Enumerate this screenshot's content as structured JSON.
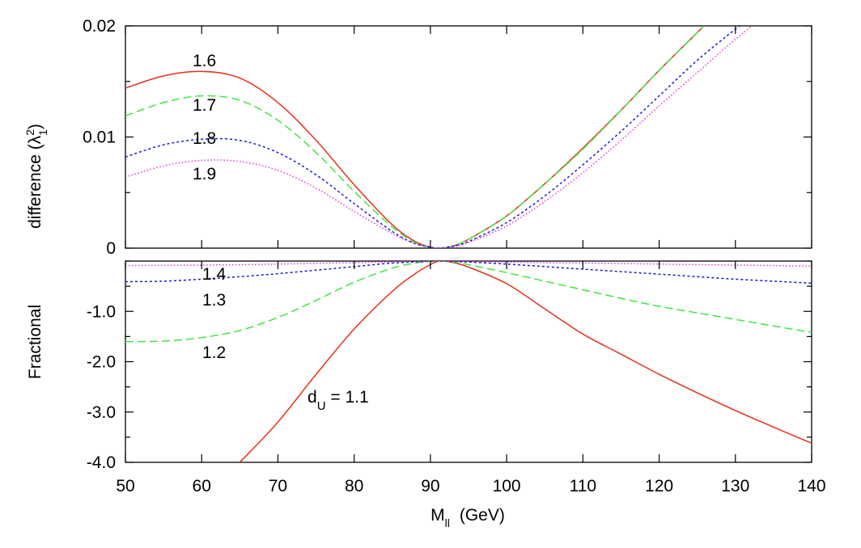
{
  "chart_data": [
    {
      "type": "line",
      "title": "",
      "xlabel_main": "M",
      "xlabel_sub": "ll",
      "xlabel_unit": "(GeV)",
      "ylabel_main": "difference (λ",
      "ylabel_sup": "2",
      "ylabel_sub": "1",
      "ylabel_close": ")",
      "xlim": [
        50,
        140
      ],
      "ylim": [
        0,
        0.02
      ],
      "xticks": [
        50,
        60,
        70,
        80,
        90,
        100,
        110,
        120,
        130,
        140
      ],
      "xtick_labels": [
        "50",
        "60",
        "70",
        "80",
        "90",
        "100",
        "110",
        "120",
        "130",
        "140"
      ],
      "yticks": [
        0,
        0.01,
        0.02
      ],
      "ytick_labels": [
        "0",
        "0.01",
        "0.02"
      ],
      "series": [
        {
          "label": "1.6",
          "color": "#e8301a",
          "dash": "none",
          "x": [
            50,
            55,
            60,
            65,
            70,
            75,
            80,
            85,
            88,
            90,
            91.2,
            93,
            95,
            100,
            105,
            110,
            115,
            120,
            125,
            127
          ],
          "y": [
            0.0144,
            0.0155,
            0.0159,
            0.0153,
            0.0131,
            0.0097,
            0.0057,
            0.0021,
            0.0006,
            0.0001,
            0.0,
            0.0002,
            0.0008,
            0.0029,
            0.0058,
            0.009,
            0.0124,
            0.016,
            0.0194,
            0.0208
          ]
        },
        {
          "label": "1.7",
          "color": "#3fe83f",
          "dash": "10,5",
          "x": [
            50,
            55,
            60,
            65,
            70,
            75,
            80,
            85,
            88,
            90,
            91.2,
            93,
            95,
            100,
            105,
            110,
            115,
            120,
            125,
            127
          ],
          "y": [
            0.0119,
            0.0131,
            0.0137,
            0.0133,
            0.0115,
            0.0086,
            0.0051,
            0.0019,
            0.0005,
            0.0001,
            0.0,
            0.0002,
            0.0008,
            0.0029,
            0.0058,
            0.0089,
            0.0124,
            0.016,
            0.0194,
            0.0208
          ]
        },
        {
          "label": "1.8",
          "color": "#1a1ad9",
          "dash": "3,3",
          "x": [
            50,
            55,
            60,
            65,
            70,
            75,
            80,
            85,
            88,
            90,
            91.2,
            93,
            95,
            100,
            105,
            110,
            115,
            120,
            125,
            130,
            133
          ],
          "y": [
            0.0082,
            0.0093,
            0.0098,
            0.0097,
            0.0086,
            0.0066,
            0.004,
            0.0015,
            0.0004,
            0.0001,
            0.0,
            0.0002,
            0.0006,
            0.0023,
            0.0047,
            0.0075,
            0.0105,
            0.0137,
            0.0169,
            0.0197,
            0.0212
          ]
        },
        {
          "label": "1.9",
          "color": "#e830e8",
          "dash": "1.5,2.5",
          "x": [
            50,
            55,
            60,
            65,
            70,
            75,
            80,
            85,
            88,
            90,
            91.2,
            93,
            95,
            100,
            105,
            110,
            115,
            120,
            125,
            130,
            135
          ],
          "y": [
            0.0064,
            0.0074,
            0.0079,
            0.0078,
            0.007,
            0.0054,
            0.0033,
            0.0013,
            0.0004,
            0.0001,
            0.0,
            0.0001,
            0.0005,
            0.002,
            0.0042,
            0.0068,
            0.0097,
            0.0128,
            0.0158,
            0.0188,
            0.0215
          ]
        }
      ],
      "annotations": [
        "1.6",
        "1.7",
        "1.8",
        "1.9"
      ]
    },
    {
      "type": "line",
      "title": "",
      "ylabel": "Fractional",
      "xlim": [
        50,
        140
      ],
      "ylim": [
        -4.0,
        0
      ],
      "yticks": [
        -1.0,
        -2.0,
        -3.0,
        -4.0
      ],
      "ytick_labels": [
        "-1.0",
        "-2.0",
        "-3.0",
        "-4.0"
      ],
      "series": [
        {
          "label": "1.1",
          "color": "#e8301a",
          "dash": "none",
          "x": [
            65,
            70,
            75,
            80,
            85,
            88,
            90,
            91.2,
            93,
            95,
            100,
            105,
            110,
            115,
            120,
            125,
            130,
            135,
            140
          ],
          "y": [
            -4.0,
            -3.2,
            -2.25,
            -1.35,
            -0.6,
            -0.25,
            -0.07,
            0.0,
            -0.03,
            -0.12,
            -0.45,
            -0.95,
            -1.45,
            -1.85,
            -2.25,
            -2.62,
            -2.97,
            -3.3,
            -3.62
          ]
        },
        {
          "label": "1.2",
          "color": "#3fe83f",
          "dash": "10,5",
          "x": [
            50,
            55,
            60,
            65,
            70,
            75,
            80,
            85,
            88,
            90,
            91.2,
            93,
            95,
            100,
            105,
            110,
            115,
            120,
            125,
            130,
            135,
            140
          ],
          "y": [
            -1.6,
            -1.59,
            -1.52,
            -1.38,
            -1.12,
            -0.78,
            -0.42,
            -0.14,
            -0.04,
            -0.01,
            0.0,
            -0.02,
            -0.07,
            -0.23,
            -0.4,
            -0.57,
            -0.74,
            -0.9,
            -1.03,
            -1.16,
            -1.29,
            -1.42
          ]
        },
        {
          "label": "1.3",
          "color": "#1a1ad9",
          "dash": "3,3",
          "x": [
            50,
            55,
            60,
            65,
            70,
            75,
            80,
            85,
            90,
            91.2,
            95,
            100,
            105,
            110,
            115,
            120,
            125,
            130,
            135,
            140
          ],
          "y": [
            -0.41,
            -0.4,
            -0.36,
            -0.31,
            -0.25,
            -0.18,
            -0.11,
            -0.04,
            -0.005,
            0.0,
            -0.02,
            -0.06,
            -0.11,
            -0.16,
            -0.21,
            -0.26,
            -0.31,
            -0.36,
            -0.4,
            -0.44
          ]
        },
        {
          "label": "1.4",
          "color": "#e830e8",
          "dash": "1.5,2.5",
          "x": [
            50,
            60,
            70,
            80,
            90,
            91.2,
            100,
            110,
            120,
            130,
            140
          ],
          "y": [
            -0.09,
            -0.08,
            -0.06,
            -0.03,
            -0.005,
            0.0,
            -0.02,
            -0.04,
            -0.06,
            -0.08,
            -0.1
          ]
        }
      ],
      "annotations": [
        "1.4",
        "1.3",
        "1.2"
      ],
      "du_label_main": "d",
      "du_label_sub": "U",
      "du_label_value": " = 1.1"
    }
  ]
}
